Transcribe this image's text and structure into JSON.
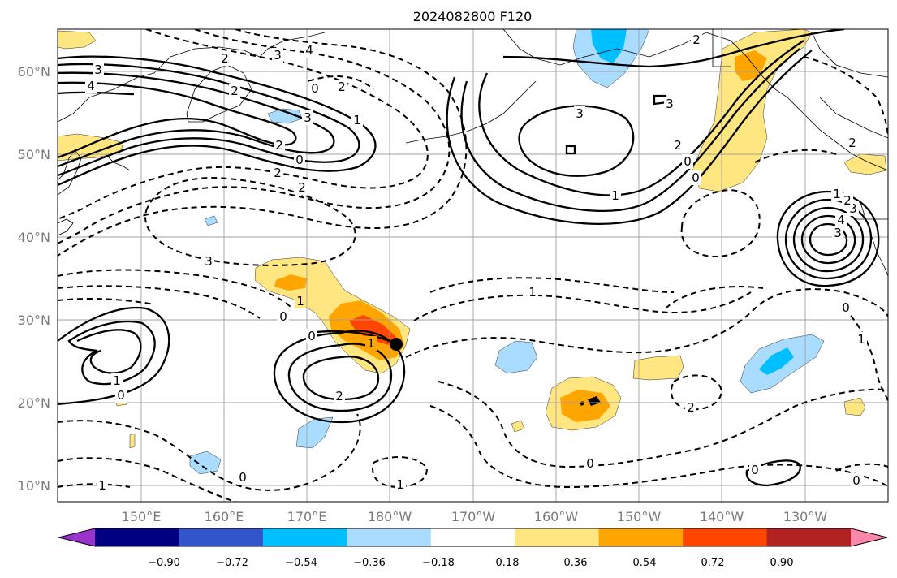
{
  "title": "2024082800 F120",
  "lat_labels": [
    "60°N",
    "50°N",
    "40°N",
    "30°N",
    "20°N",
    "10°N"
  ],
  "lon_labels": [
    "150°E",
    "160°E",
    "170°E",
    "180°W",
    "170°W",
    "160°W",
    "150°W",
    "140°W",
    "130°W"
  ],
  "colorbar": {
    "ticks": [
      "−0.90",
      "−0.72",
      "−0.54",
      "−0.36",
      "−0.18",
      "0.18",
      "0.36",
      "0.54",
      "0.72",
      "0.90"
    ],
    "colors": [
      "#9933cc",
      "#000080",
      "#3355cc",
      "#00bfff",
      "#aadcff",
      "#ffffff",
      "#ffe680",
      "#ffa500",
      "#ff4500",
      "#b22222",
      "#ff88aa"
    ]
  },
  "contour_labels": [
    {
      "id": "c1",
      "text": "3"
    },
    {
      "id": "c2",
      "text": "4"
    },
    {
      "id": "c3",
      "text": "2"
    },
    {
      "id": "c4",
      "text": "3"
    },
    {
      "id": "c5",
      "text": "4"
    },
    {
      "id": "c6",
      "text": "0"
    },
    {
      "id": "c7",
      "text": "2"
    },
    {
      "id": "c8",
      "text": "3"
    },
    {
      "id": "c9",
      "text": "1"
    },
    {
      "id": "c10",
      "text": "2"
    },
    {
      "id": "c11",
      "text": "0"
    },
    {
      "id": "c12",
      "text": "2"
    },
    {
      "id": "c13",
      "text": "2"
    },
    {
      "id": "c14",
      "text": "3"
    },
    {
      "id": "c15",
      "text": "2"
    },
    {
      "id": "c16",
      "text": "3"
    },
    {
      "id": "c17",
      "text": "3"
    },
    {
      "id": "c18",
      "text": "2"
    },
    {
      "id": "c19",
      "text": "1"
    },
    {
      "id": "c20",
      "text": "0"
    },
    {
      "id": "c21",
      "text": "0"
    },
    {
      "id": "c22",
      "text": "2"
    },
    {
      "id": "c23",
      "text": "3"
    },
    {
      "id": "c24",
      "text": "1"
    },
    {
      "id": "c25",
      "text": "0"
    },
    {
      "id": "c26",
      "text": "0"
    },
    {
      "id": "c27",
      "text": "1"
    },
    {
      "id": "c28",
      "text": "2"
    },
    {
      "id": "c29",
      "text": "1"
    },
    {
      "id": "c30",
      "text": "0"
    },
    {
      "id": "c31",
      "text": "1"
    },
    {
      "id": "c32",
      "text": "0"
    },
    {
      "id": "c33",
      "text": "1"
    },
    {
      "id": "c34",
      "text": "2"
    },
    {
      "id": "c35",
      "text": "0"
    },
    {
      "id": "c36",
      "text": "0"
    },
    {
      "id": "c37",
      "text": "1"
    },
    {
      "id": "c38",
      "text": "0"
    },
    {
      "id": "c39",
      "text": "2"
    },
    {
      "id": "c40",
      "text": "1"
    },
    {
      "id": "c41",
      "text": "0"
    },
    {
      "id": "c42",
      "text": "4"
    },
    {
      "id": "c43",
      "text": "3"
    },
    {
      "id": "c44",
      "text": "1"
    },
    {
      "id": "c45",
      "text": "2"
    }
  ]
}
